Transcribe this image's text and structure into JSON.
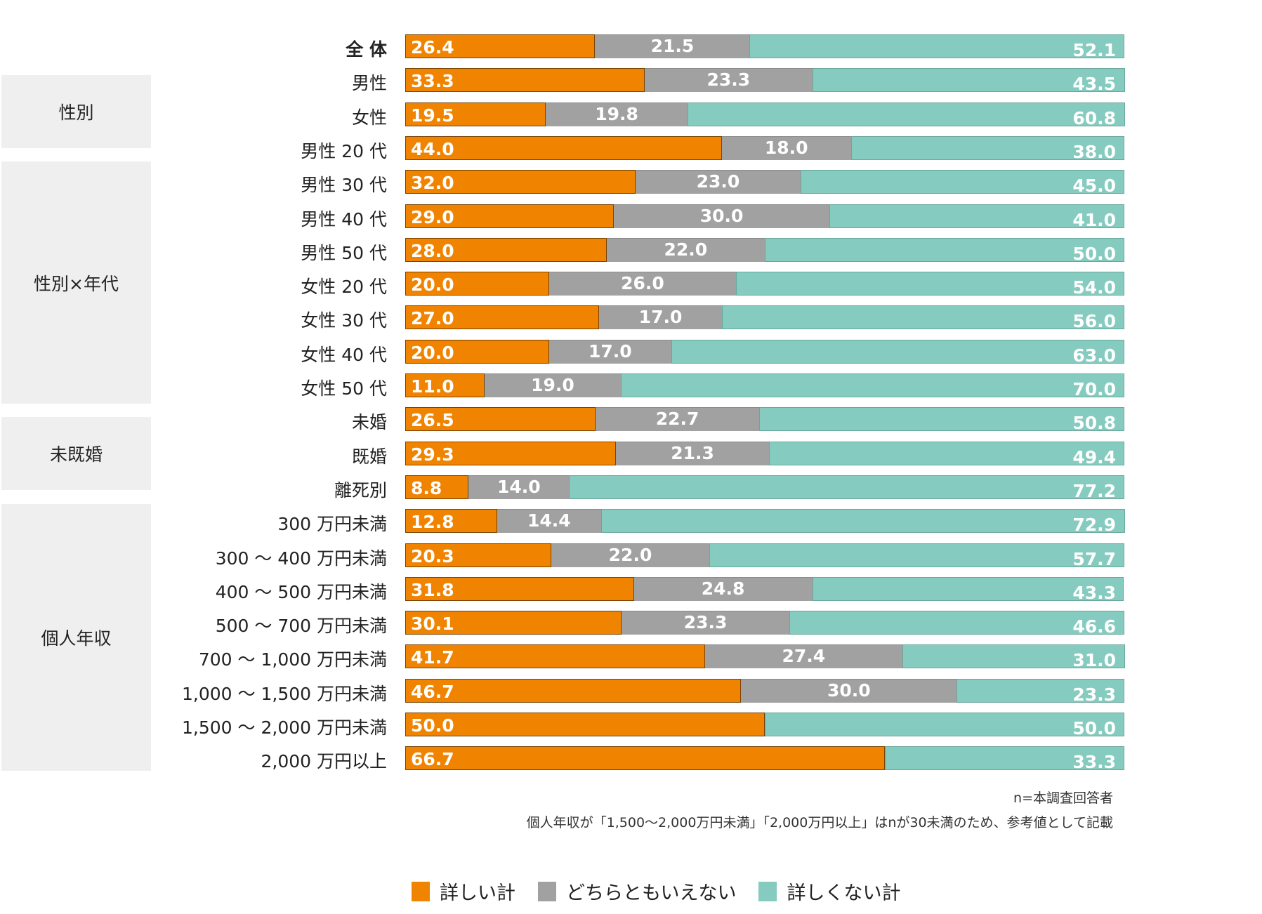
{
  "chart_data": {
    "type": "bar",
    "stacked": true,
    "orientation": "horizontal",
    "xlim": [
      0,
      100
    ],
    "grid": false,
    "legend_position": "bottom",
    "colors": {
      "detailed": "#F08300",
      "neither": "#A0A1A0",
      "not_detailed": "#86CBBF"
    },
    "legend": [
      "詳しい計",
      "どちらともいえない",
      "詳しくない計"
    ],
    "groups": [
      {
        "label": "性別",
        "rows": [
          "男性",
          "女性"
        ]
      },
      {
        "label": "性別×年代",
        "rows": [
          "男性 20 代",
          "男性 30 代",
          "男性 40 代",
          "男性 50 代",
          "女性 20 代",
          "女性 30 代",
          "女性 40 代",
          "女性 50 代"
        ]
      },
      {
        "label": "未既婚",
        "rows": [
          "未婚",
          "既婚",
          "離死別"
        ]
      },
      {
        "label": "個人年収",
        "rows": [
          "300 万円未満",
          "300 ～ 400 万円未満",
          "400 ～ 500 万円未満",
          "500 ～ 700 万円未満",
          "700 ～ 1,000 万円未満",
          "1,000 ～ 1,500 万円未満",
          "1,500 ～ 2,000 万円未満",
          "2,000 万円以上"
        ]
      }
    ],
    "categories": [
      "全 体",
      "男性",
      "女性",
      "男性 20 代",
      "男性 30 代",
      "男性 40 代",
      "男性 50 代",
      "女性 20 代",
      "女性 30 代",
      "女性 40 代",
      "女性 50 代",
      "未婚",
      "既婚",
      "離死別",
      "300 万円未満",
      "300 ～ 400 万円未満",
      "400 ～ 500 万円未満",
      "500 ～ 700 万円未満",
      "700 ～ 1,000 万円未満",
      "1,000 ～ 1,500 万円未満",
      "1,500 ～ 2,000 万円未満",
      "2,000 万円以上"
    ],
    "series": [
      {
        "name": "詳しい計",
        "values": [
          26.4,
          33.3,
          19.5,
          44.0,
          32.0,
          29.0,
          28.0,
          20.0,
          27.0,
          20.0,
          11.0,
          26.5,
          29.3,
          8.8,
          12.8,
          20.3,
          31.8,
          30.1,
          41.7,
          46.7,
          50.0,
          66.7
        ]
      },
      {
        "name": "どちらともいえない",
        "values": [
          21.5,
          23.3,
          19.8,
          18.0,
          23.0,
          30.0,
          22.0,
          26.0,
          17.0,
          17.0,
          19.0,
          22.7,
          21.3,
          14.0,
          14.4,
          22.0,
          24.8,
          23.3,
          27.4,
          30.0,
          0,
          0
        ]
      },
      {
        "name": "詳しくない計",
        "values": [
          52.1,
          43.5,
          60.8,
          38.0,
          45.0,
          41.0,
          50.0,
          54.0,
          56.0,
          63.0,
          70.0,
          50.8,
          49.4,
          77.2,
          72.9,
          57.7,
          43.3,
          46.6,
          31.0,
          23.3,
          50.0,
          33.3
        ]
      }
    ],
    "notes": [
      "n=本調査回答者",
      "個人年収が「1,500～2,000万円未満」「2,000万円以上」はnが30未満のため、参考値として記載"
    ]
  }
}
